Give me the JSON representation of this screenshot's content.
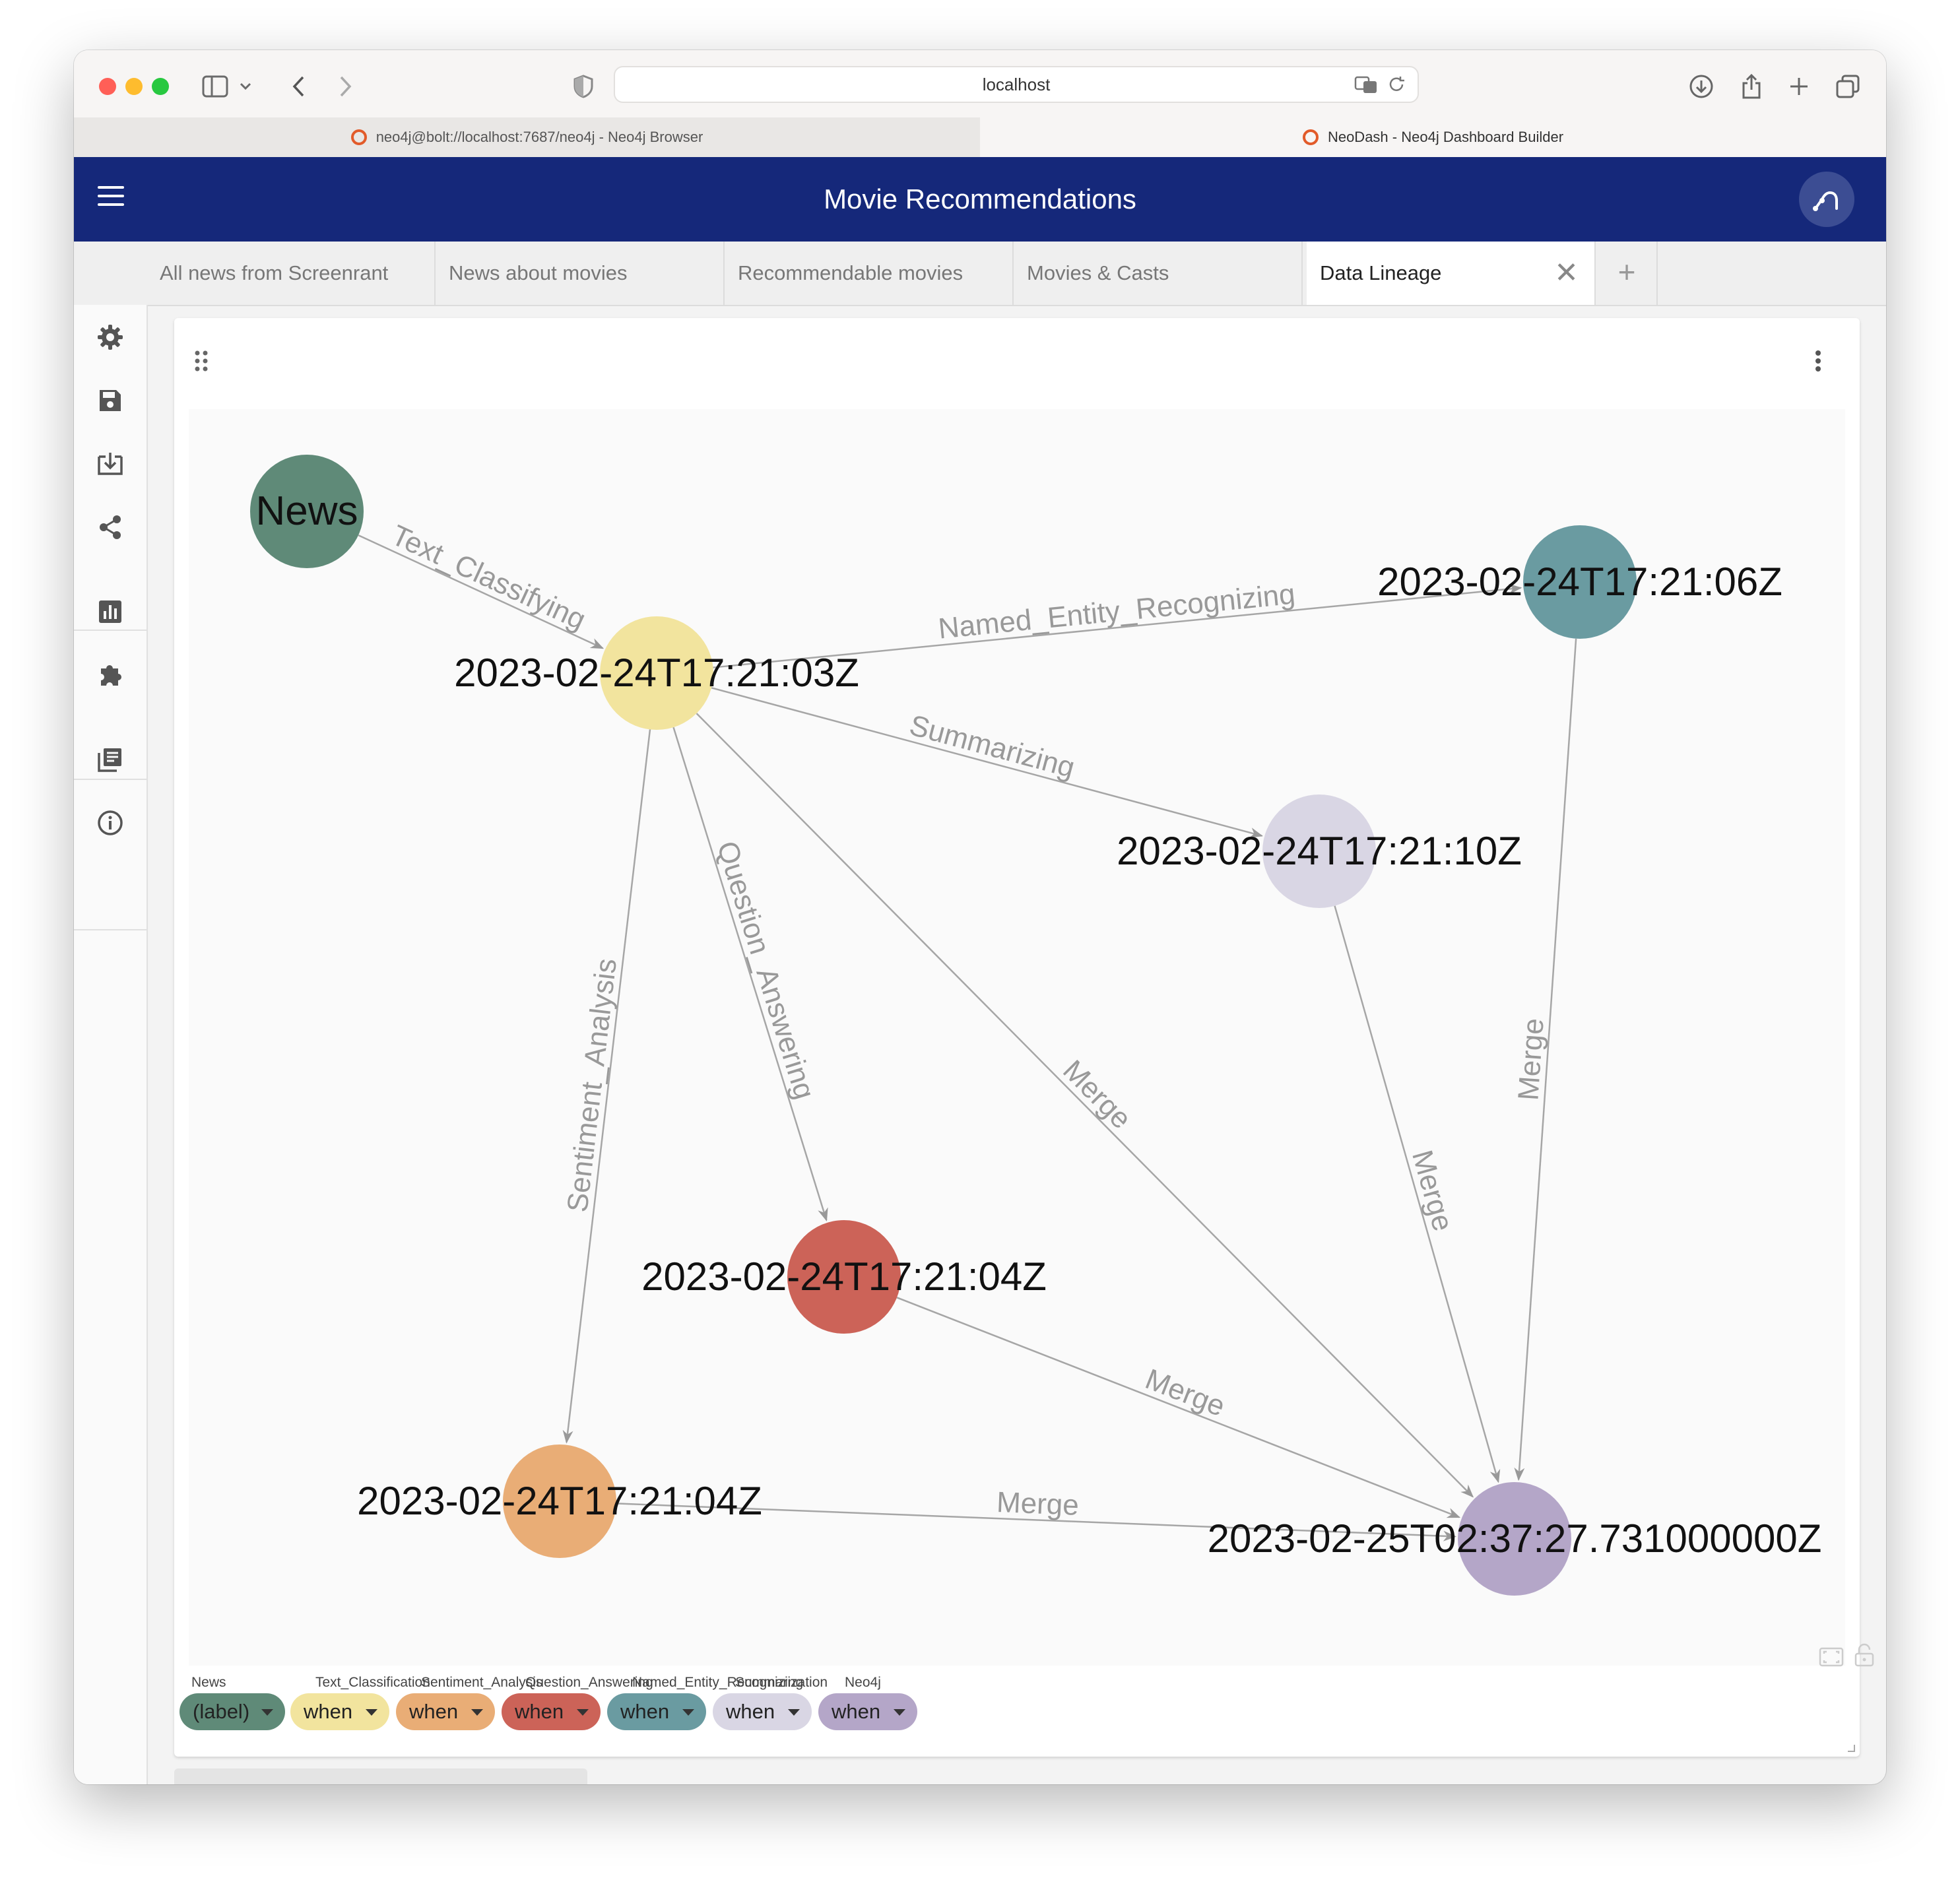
{
  "browser": {
    "url": "localhost",
    "tabs": [
      {
        "label": "neo4j@bolt://localhost:7687/neo4j - Neo4j Browser",
        "active": false
      },
      {
        "label": "NeoDash - Neo4j Dashboard Builder",
        "active": true
      }
    ]
  },
  "app": {
    "title": "Movie Recommendations"
  },
  "page_tabs": [
    {
      "label": "All news from Screenrant",
      "active": false
    },
    {
      "label": "News about movies",
      "active": false
    },
    {
      "label": "Recommendable movies",
      "active": false
    },
    {
      "label": "Movies & Casts",
      "active": false
    },
    {
      "label": "Data Lineage",
      "active": true
    }
  ],
  "sidebar": {
    "icons": [
      "settings-icon",
      "save-icon",
      "load-icon",
      "share-icon",
      "report-icon",
      "extensions-icon",
      "documentation-icon",
      "info-icon"
    ]
  },
  "graph": {
    "nodes": [
      {
        "id": "news",
        "label": "News",
        "color": "#5f8a78"
      },
      {
        "id": "tc",
        "label": "2023-02-24T17:21:03Z",
        "color": "#f2e49e"
      },
      {
        "id": "ner",
        "label": "2023-02-24T17:21:06Z",
        "color": "#6a9ba1"
      },
      {
        "id": "sum",
        "label": "2023-02-24T17:21:10Z",
        "color": "#d9d6e4"
      },
      {
        "id": "qa",
        "label": "2023-02-24T17:21:04Z",
        "color": "#cc6358"
      },
      {
        "id": "sa",
        "label": "2023-02-24T17:21:04Z",
        "color": "#e9ad76"
      },
      {
        "id": "neo",
        "label": "2023-02-25T02:37:27.731000000Z",
        "color": "#b4a6c8"
      }
    ],
    "edges": [
      {
        "from": "news",
        "to": "tc",
        "label": "Text_Classifying"
      },
      {
        "from": "tc",
        "to": "ner",
        "label": "Named_Entity_Recognizing"
      },
      {
        "from": "tc",
        "to": "sum",
        "label": "Summarizing"
      },
      {
        "from": "tc",
        "to": "qa",
        "label": "Question_Answering"
      },
      {
        "from": "tc",
        "to": "sa",
        "label": "Sentiment_Analysis"
      },
      {
        "from": "tc",
        "to": "neo",
        "label": "Merge"
      },
      {
        "from": "ner",
        "to": "neo",
        "label": "Merge"
      },
      {
        "from": "sum",
        "to": "neo",
        "label": "Merge"
      },
      {
        "from": "qa",
        "to": "neo",
        "label": "Merge"
      },
      {
        "from": "sa",
        "to": "neo",
        "label": "Merge"
      }
    ]
  },
  "legend": [
    {
      "category": "News",
      "value": "(label)",
      "color": "#5f8a78"
    },
    {
      "category": "Text_Classification",
      "value": "when",
      "color": "#f2e49e"
    },
    {
      "category": "Sentiment_Analysis",
      "value": "when",
      "color": "#e9ad76"
    },
    {
      "category": "Question_Answering",
      "value": "when",
      "color": "#cc6358"
    },
    {
      "category": "Named_Entity_Recognizing",
      "value": "when",
      "color": "#6a9ba1"
    },
    {
      "category": "Summarization",
      "value": "when",
      "color": "#d9d6e4"
    },
    {
      "category": "Neo4j",
      "value": "when",
      "color": "#b4a6c8"
    }
  ]
}
